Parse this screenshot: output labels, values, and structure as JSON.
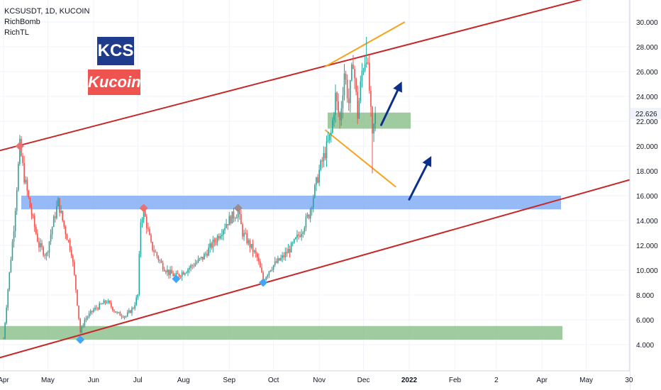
{
  "header": {
    "symbol_line": "KCSUSDT, 1D, KUCOIN",
    "indicators": [
      "RichBomb",
      "RichTL"
    ]
  },
  "logos": {
    "kcs": "KCS",
    "kucoin": "Kucoin"
  },
  "colors": {
    "trend_line": "#c62828",
    "wedge": "#f7a21b",
    "arrow": "#0d2f8c",
    "zone_blue": "#82aef5",
    "zone_green": "#8fc18f",
    "up_candle": "#26a69a",
    "down_candle": "#ef5350",
    "marker_top": "#e57373",
    "marker_bottom": "#42a5f5",
    "marker_gray": "#9e8a8a"
  },
  "chart_data": {
    "type": "candlestick",
    "title": "KCSUSDT, 1D, KUCOIN",
    "x_ticks": [
      "Apr",
      "May",
      "Jun",
      "Jul",
      "Aug",
      "Sep",
      "Oct",
      "Nov",
      "Dec",
      "2022",
      "Feb",
      "2",
      "Apr",
      "May",
      "30"
    ],
    "y_ticks": [
      "30.000",
      "28.000",
      "26.000",
      "24.000",
      "22.000",
      "20.000",
      "18.000",
      "16.000",
      "14.000",
      "12.000",
      "10.000",
      "8.000",
      "6.000",
      "4.000"
    ],
    "ylim": [
      1.5,
      31.5
    ],
    "last_price": "22.626",
    "path_points": [
      [
        "2021-04-01",
        4.5
      ],
      [
        "2021-04-04",
        8.5
      ],
      [
        "2021-04-08",
        13.5
      ],
      [
        "2021-04-12",
        20.0
      ],
      [
        "2021-04-15",
        17.5
      ],
      [
        "2021-04-20",
        14.5
      ],
      [
        "2021-04-25",
        12.0
      ],
      [
        "2021-04-30",
        11.2
      ],
      [
        "2021-05-04",
        13.5
      ],
      [
        "2021-05-08",
        15.5
      ],
      [
        "2021-05-12",
        13.5
      ],
      [
        "2021-05-17",
        11.5
      ],
      [
        "2021-05-20",
        8.5
      ],
      [
        "2021-05-23",
        5.0
      ],
      [
        "2021-05-26",
        6.0
      ],
      [
        "2021-06-01",
        6.8
      ],
      [
        "2021-06-10",
        7.5
      ],
      [
        "2021-06-17",
        6.5
      ],
      [
        "2021-06-23",
        6.3
      ],
      [
        "2021-06-28",
        7.0
      ],
      [
        "2021-07-01",
        8.0
      ],
      [
        "2021-07-03",
        14.0
      ],
      [
        "2021-07-05",
        14.8
      ],
      [
        "2021-07-10",
        12.0
      ],
      [
        "2021-07-17",
        10.5
      ],
      [
        "2021-07-22",
        9.8
      ],
      [
        "2021-07-27",
        9.5
      ],
      [
        "2021-08-05",
        10.2
      ],
      [
        "2021-08-14",
        11.0
      ],
      [
        "2021-08-23",
        12.5
      ],
      [
        "2021-08-30",
        13.8
      ],
      [
        "2021-09-03",
        14.3
      ],
      [
        "2021-09-07",
        14.7
      ],
      [
        "2021-09-10",
        13.0
      ],
      [
        "2021-09-15",
        12.0
      ],
      [
        "2021-09-20",
        11.0
      ],
      [
        "2021-09-24",
        9.2
      ],
      [
        "2021-09-29",
        10.2
      ],
      [
        "2021-10-07",
        11.0
      ],
      [
        "2021-10-14",
        12.0
      ],
      [
        "2021-10-20",
        13.2
      ],
      [
        "2021-10-25",
        14.5
      ],
      [
        "2021-10-28",
        16.0
      ],
      [
        "2021-11-01",
        18.0
      ],
      [
        "2021-11-05",
        19.5
      ],
      [
        "2021-11-09",
        21.0
      ],
      [
        "2021-11-12",
        24.0
      ],
      [
        "2021-11-15",
        22.0
      ],
      [
        "2021-11-18",
        26.0
      ],
      [
        "2021-11-21",
        23.5
      ],
      [
        "2021-11-24",
        27.0
      ],
      [
        "2021-11-27",
        22.5
      ],
      [
        "2021-11-30",
        26.0
      ],
      [
        "2021-12-03",
        27.5
      ],
      [
        "2021-12-05",
        24.5
      ],
      [
        "2021-12-07",
        20.5
      ],
      [
        "2021-12-09",
        22.626
      ]
    ],
    "annotations": {
      "upper_trend_line": [
        [
          "2021-03-25",
          19.5
        ],
        [
          "2022-05-20",
          32.5
        ]
      ],
      "lower_trend_line": [
        [
          "2021-03-25",
          2.8
        ],
        [
          "2022-05-31",
          17.3
        ]
      ],
      "wedge_upper": [
        [
          "2021-11-05",
          26.4
        ],
        [
          "2021-12-29",
          30.0
        ]
      ],
      "wedge_lower": [
        [
          "2021-11-05",
          21.3
        ],
        [
          "2021-12-23",
          16.7
        ]
      ],
      "resistance_zone": [
        14.9,
        16.0
      ],
      "support_zone": [
        22.7,
        21.4
      ],
      "bottom_zone": [
        4.4,
        5.5
      ],
      "arrows": [
        {
          "from": [
            "2021-12-13",
            21.7
          ],
          "to": [
            "2021-12-27",
            25.2
          ]
        },
        {
          "from": [
            "2022-01-01",
            15.7
          ],
          "to": [
            "2022-01-16",
            19.2
          ]
        }
      ],
      "tops": [
        [
          "2021-04-12",
          20.0
        ],
        [
          "2021-07-05",
          15.0
        ],
        [
          "2021-09-07",
          15.0
        ]
      ],
      "bottoms": [
        [
          "2021-05-23",
          4.4
        ],
        [
          "2021-07-27",
          9.3
        ],
        [
          "2021-09-24",
          9.0
        ]
      ]
    }
  }
}
